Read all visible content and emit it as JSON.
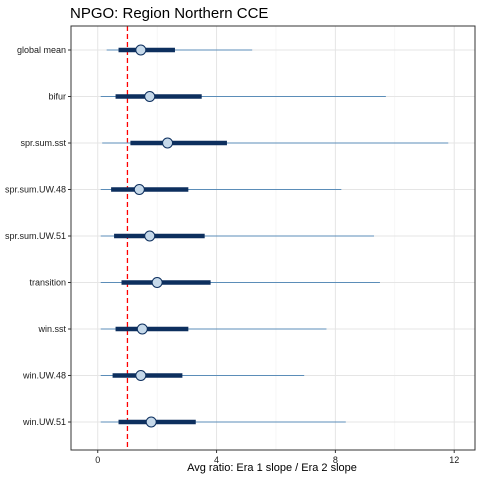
{
  "chart_data": {
    "type": "forest",
    "title": "NPGO: Region Northern CCE",
    "xlabel": "Avg ratio: Era 1 slope / Era 2 slope",
    "ylabel": "",
    "xlim": [
      -0.9,
      12.7
    ],
    "xticks": [
      0,
      4,
      8,
      12
    ],
    "reference_line": {
      "x": 1,
      "style": "dashed",
      "color": "#ff0000"
    },
    "grid": true,
    "categories": [
      "global mean",
      "bifur",
      "spr.sum.sst",
      "spr.sum.UW.48",
      "spr.sum.UW.51",
      "transition",
      "win.sst",
      "win.UW.48",
      "win.UW.51"
    ],
    "estimates": [
      {
        "label": "global mean",
        "outer": [
          0.3,
          5.2
        ],
        "inner": [
          0.7,
          2.6
        ],
        "point": 1.45
      },
      {
        "label": "bifur",
        "outer": [
          0.1,
          9.7
        ],
        "inner": [
          0.6,
          3.5
        ],
        "point": 1.75
      },
      {
        "label": "spr.sum.sst",
        "outer": [
          0.15,
          11.8
        ],
        "inner": [
          1.1,
          4.35
        ],
        "point": 2.35
      },
      {
        "label": "spr.sum.UW.48",
        "outer": [
          0.1,
          8.2
        ],
        "inner": [
          0.45,
          3.05
        ],
        "point": 1.4
      },
      {
        "label": "spr.sum.UW.51",
        "outer": [
          0.1,
          9.3
        ],
        "inner": [
          0.55,
          3.6
        ],
        "point": 1.75
      },
      {
        "label": "transition",
        "outer": [
          0.1,
          9.5
        ],
        "inner": [
          0.8,
          3.8
        ],
        "point": 2.0
      },
      {
        "label": "win.sst",
        "outer": [
          0.1,
          7.7
        ],
        "inner": [
          0.6,
          3.05
        ],
        "point": 1.5
      },
      {
        "label": "win.UW.48",
        "outer": [
          0.1,
          6.95
        ],
        "inner": [
          0.5,
          2.85
        ],
        "point": 1.45
      },
      {
        "label": "win.UW.51",
        "outer": [
          0.1,
          8.35
        ],
        "inner": [
          0.7,
          3.3
        ],
        "point": 1.8
      }
    ],
    "colors": {
      "outer_line": "#5b8db8",
      "inner_line": "#0d2f5e",
      "point_fill": "#c6d9ea",
      "point_stroke": "#0d2f5e",
      "grid": "#e5e5e5",
      "panel_border": "#333333"
    }
  }
}
